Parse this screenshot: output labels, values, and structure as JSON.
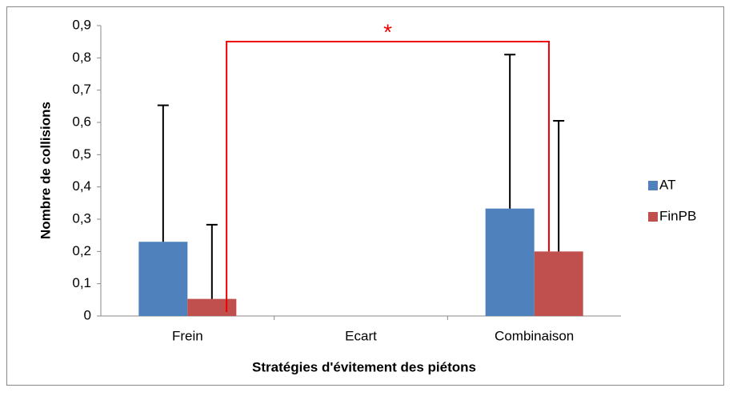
{
  "chart_data": {
    "type": "bar",
    "x_label": "Stratégies d'évitement des piétons",
    "y_label": "Nombre de collisions",
    "categories": [
      "Frein",
      "Ecart",
      "Combinaison"
    ],
    "series": [
      {
        "name": "AT",
        "color": "#4f81bd",
        "values": [
          0.23,
          0,
          0.333
        ],
        "errors": [
          0.423,
          0,
          0.477
        ]
      },
      {
        "name": "FinPB",
        "color": "#c0504d",
        "values": [
          0.053,
          0,
          0.2
        ],
        "errors": [
          0.23,
          0,
          0.405
        ]
      }
    ],
    "annotation": "*",
    "ylim": [
      0,
      0.9
    ],
    "yticks": [
      0,
      {
        "value": 0.1,
        "label": "0,1"
      },
      {
        "value": 0.2,
        "label": "0,2"
      },
      {
        "value": 0.3,
        "label": "0,3"
      },
      {
        "value": 0.4,
        "label": "0,4"
      },
      {
        "value": 0.5,
        "label": "0,5"
      },
      {
        "value": 0.6,
        "label": "0,6"
      },
      {
        "value": 0.7,
        "label": "0,7"
      },
      {
        "value": 0.8,
        "label": "0,8"
      },
      {
        "value": 0.9,
        "label": "0,9"
      }
    ],
    "legend": "right"
  }
}
